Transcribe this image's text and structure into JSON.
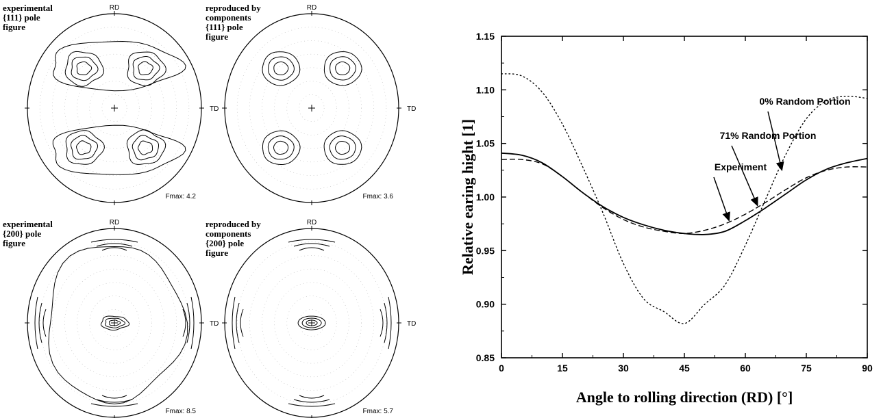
{
  "pole_figures": [
    {
      "caption": [
        "experimental",
        "{111} pole",
        "figure"
      ],
      "rd_label": "RD",
      "td_label": "TD",
      "fmax": "Fmax: 4.2",
      "pattern": "exp111"
    },
    {
      "caption": [
        "reproduced by",
        "components",
        "{111} pole",
        "figure"
      ],
      "rd_label": "RD",
      "td_label": "TD",
      "fmax": "Fmax: 3.6",
      "pattern": "rep111"
    },
    {
      "caption": [
        "experimental",
        "{200} pole",
        "figure"
      ],
      "rd_label": "RD",
      "td_label": "TD",
      "fmax": "Fmax: 8.5",
      "pattern": "exp200"
    },
    {
      "caption": [
        "reproduced by",
        "components",
        "{200} pole",
        "figure"
      ],
      "rd_label": "RD",
      "td_label": "TD",
      "fmax": "Fmax: 5.7",
      "pattern": "rep200"
    }
  ],
  "chart_data": {
    "type": "line",
    "xlabel": "Angle to rolling direction (RD)  [°]",
    "ylabel": "Relative earing hight  [1]",
    "xlim": [
      0,
      90
    ],
    "ylim": [
      0.85,
      1.15
    ],
    "xticks": [
      0,
      15,
      30,
      45,
      60,
      75,
      90
    ],
    "yticks": [
      0.85,
      0.9,
      0.95,
      1.0,
      1.05,
      1.1,
      1.15
    ],
    "ytick_labels": [
      "0.85",
      "0.90",
      "0.95",
      "1.00",
      "1.05",
      "1.10",
      "1.15"
    ],
    "grid": false,
    "series": [
      {
        "name": "Experiment",
        "style": "solid",
        "x": [
          0,
          5,
          10,
          15,
          20,
          25,
          30,
          35,
          40,
          45,
          50,
          55,
          60,
          65,
          70,
          75,
          80,
          85,
          90
        ],
        "y": [
          1.041,
          1.039,
          1.032,
          1.019,
          1.004,
          0.991,
          0.981,
          0.974,
          0.969,
          0.966,
          0.965,
          0.968,
          0.978,
          0.99,
          1.003,
          1.016,
          1.026,
          1.032,
          1.036
        ]
      },
      {
        "name": "71% Random Portion",
        "style": "dashed",
        "x": [
          0,
          5,
          10,
          15,
          20,
          25,
          30,
          35,
          40,
          45,
          50,
          55,
          60,
          65,
          70,
          75,
          80,
          85,
          90
        ],
        "y": [
          1.035,
          1.035,
          1.031,
          1.019,
          1.004,
          0.99,
          0.979,
          0.972,
          0.968,
          0.966,
          0.969,
          0.975,
          0.984,
          0.995,
          1.007,
          1.018,
          1.025,
          1.028,
          1.028
        ]
      },
      {
        "name": "0% Random Portion",
        "style": "dotted",
        "x": [
          0,
          5,
          10,
          15,
          20,
          25,
          30,
          35,
          40,
          45,
          50,
          55,
          60,
          65,
          70,
          75,
          80,
          85,
          90
        ],
        "y": [
          1.115,
          1.113,
          1.098,
          1.068,
          1.028,
          0.985,
          0.938,
          0.905,
          0.893,
          0.882,
          0.9,
          0.918,
          0.955,
          0.998,
          1.04,
          1.073,
          1.09,
          1.094,
          1.092
        ]
      }
    ],
    "annotations": [
      {
        "text": "0% Random Portion",
        "series": "0% Random Portion",
        "x": 69,
        "y": 1.025
      },
      {
        "text": "71% Random Portion",
        "series": "71% Random Portion",
        "x": 63,
        "y": 0.992
      },
      {
        "text": "Experiment",
        "series": "Experiment",
        "x": 56,
        "y": 0.978
      }
    ]
  }
}
